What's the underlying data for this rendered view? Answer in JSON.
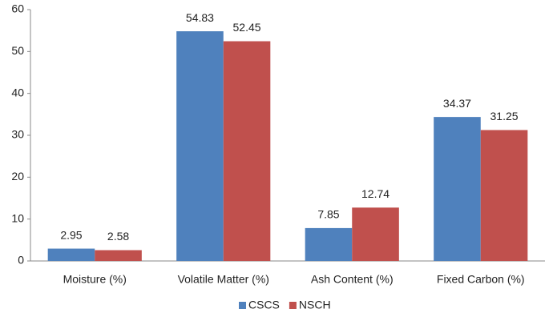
{
  "chart_data": {
    "type": "bar",
    "categories": [
      "Moisture (%)",
      "Volatile Matter (%)",
      "Ash Content (%)",
      "Fixed Carbon (%)"
    ],
    "series": [
      {
        "name": "CSCS",
        "color": "#4f81bd",
        "values": [
          2.95,
          54.83,
          7.85,
          34.37
        ]
      },
      {
        "name": "NSCH",
        "color": "#c0504d",
        "values": [
          2.58,
          52.45,
          12.74,
          31.25
        ]
      }
    ],
    "ylim": [
      0,
      60
    ],
    "yticks": [
      0,
      10,
      20,
      30,
      40,
      50,
      60
    ],
    "grid": false,
    "legend": "bottom"
  }
}
